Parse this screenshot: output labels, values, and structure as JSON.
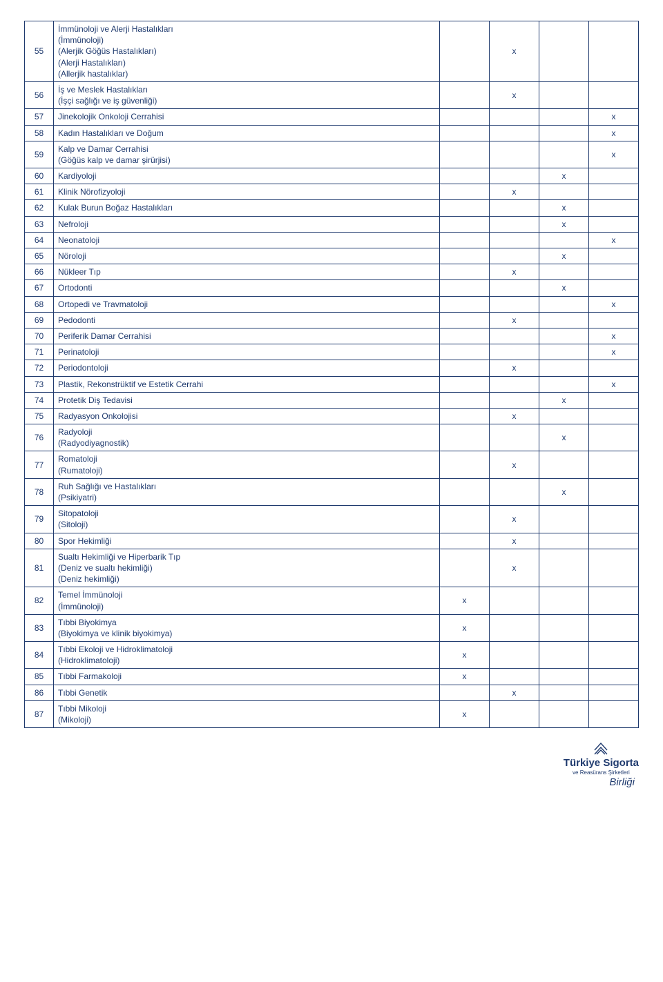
{
  "columns": {
    "num_width": 42,
    "mark_width": 72
  },
  "colors": {
    "border": "#1f3a6e",
    "text": "#1f3a6e",
    "bg": "#ffffff"
  },
  "rows": [
    {
      "n": "55",
      "desc": "İmmünoloji ve Alerji Hastalıkları\n(İmmünoloji)\n(Alerjik Göğüs Hastalıkları)\n(Alerji Hastalıkları)\n(Allerjik hastalıklar)",
      "marks": [
        "",
        "x",
        "",
        ""
      ]
    },
    {
      "n": "56",
      "desc": "İş ve Meslek Hastalıkları\n(İşçi sağlığı ve iş güvenliği)",
      "marks": [
        "",
        "x",
        "",
        ""
      ]
    },
    {
      "n": "57",
      "desc": "Jinekolojik Onkoloji Cerrahisi",
      "marks": [
        "",
        "",
        "",
        "x"
      ]
    },
    {
      "n": "58",
      "desc": "Kadın Hastalıkları ve Doğum",
      "marks": [
        "",
        "",
        "",
        "x"
      ]
    },
    {
      "n": "59",
      "desc": "Kalp ve Damar Cerrahisi\n(Göğüs kalp ve damar şirürjisi)",
      "marks": [
        "",
        "",
        "",
        "x"
      ]
    },
    {
      "n": "60",
      "desc": "Kardiyoloji",
      "marks": [
        "",
        "",
        "x",
        ""
      ]
    },
    {
      "n": "61",
      "desc": "Klinik Nörofizyoloji",
      "marks": [
        "",
        "x",
        "",
        ""
      ]
    },
    {
      "n": "62",
      "desc": "Kulak Burun Boğaz Hastalıkları",
      "marks": [
        "",
        "",
        "x",
        ""
      ]
    },
    {
      "n": "63",
      "desc": "Nefroloji",
      "marks": [
        "",
        "",
        "x",
        ""
      ]
    },
    {
      "n": "64",
      "desc": "Neonatoloji",
      "marks": [
        "",
        "",
        "",
        "x"
      ]
    },
    {
      "n": "65",
      "desc": "Nöroloji",
      "marks": [
        "",
        "",
        "x",
        ""
      ]
    },
    {
      "n": "66",
      "desc": "Nükleer Tıp",
      "marks": [
        "",
        "x",
        "",
        ""
      ]
    },
    {
      "n": "67",
      "desc": "Ortodonti",
      "marks": [
        "",
        "",
        "x",
        ""
      ]
    },
    {
      "n": "68",
      "desc": "Ortopedi ve Travmatoloji",
      "marks": [
        "",
        "",
        "",
        "x"
      ]
    },
    {
      "n": "69",
      "desc": "Pedodonti",
      "marks": [
        "",
        "x",
        "",
        ""
      ]
    },
    {
      "n": "70",
      "desc": "Periferik Damar Cerrahisi",
      "marks": [
        "",
        "",
        "",
        "x"
      ]
    },
    {
      "n": "71",
      "desc": "Perinatoloji",
      "marks": [
        "",
        "",
        "",
        "x"
      ]
    },
    {
      "n": "72",
      "desc": "Periodontoloji",
      "marks": [
        "",
        "x",
        "",
        ""
      ]
    },
    {
      "n": "73",
      "desc": "Plastik, Rekonstrüktif ve Estetik Cerrahi",
      "marks": [
        "",
        "",
        "",
        "x"
      ]
    },
    {
      "n": "74",
      "desc": "Protetik Diş Tedavisi",
      "marks": [
        "",
        "",
        "x",
        ""
      ]
    },
    {
      "n": "75",
      "desc": "Radyasyon Onkolojisi",
      "marks": [
        "",
        "x",
        "",
        ""
      ]
    },
    {
      "n": "76",
      "desc": "Radyoloji\n(Radyodiyagnostik)",
      "marks": [
        "",
        "",
        "x",
        ""
      ]
    },
    {
      "n": "77",
      "desc": "Romatoloji\n(Rumatoloji)",
      "marks": [
        "",
        "x",
        "",
        ""
      ]
    },
    {
      "n": "78",
      "desc": "Ruh Sağlığı ve Hastalıkları\n(Psikiyatri)",
      "marks": [
        "",
        "",
        "x",
        ""
      ]
    },
    {
      "n": "79",
      "desc": "Sitopatoloji\n(Sitoloji)",
      "marks": [
        "",
        "x",
        "",
        ""
      ]
    },
    {
      "n": "80",
      "desc": "Spor Hekimliği",
      "marks": [
        "",
        "x",
        "",
        ""
      ]
    },
    {
      "n": "81",
      "desc": "Sualtı Hekimliği ve Hiperbarik Tıp\n(Deniz ve sualtı hekimliği)\n(Deniz hekimliği)",
      "marks": [
        "",
        "x",
        "",
        ""
      ]
    },
    {
      "n": "82",
      "desc": "Temel İmmünoloji\n(İmmünoloji)",
      "marks": [
        "x",
        "",
        "",
        ""
      ]
    },
    {
      "n": "83",
      "desc": "Tıbbi Biyokimya\n(Biyokimya ve klinik biyokimya)",
      "marks": [
        "x",
        "",
        "",
        ""
      ]
    },
    {
      "n": "84",
      "desc": "Tıbbi Ekoloji ve Hidroklimatoloji\n(Hidroklimatoloji)",
      "marks": [
        "x",
        "",
        "",
        ""
      ]
    },
    {
      "n": "85",
      "desc": "Tıbbi Farmakoloji",
      "marks": [
        "x",
        "",
        "",
        ""
      ]
    },
    {
      "n": "86",
      "desc": "Tıbbi Genetik",
      "marks": [
        "",
        "x",
        "",
        ""
      ]
    },
    {
      "n": "87",
      "desc": "Tıbbi Mikoloji\n(Mikoloji)",
      "marks": [
        "x",
        "",
        "",
        ""
      ]
    }
  ],
  "footer": {
    "main": "Türkiye Sigorta",
    "sub": "ve Reasürans Şirketleri",
    "birligi": "Birliği"
  }
}
